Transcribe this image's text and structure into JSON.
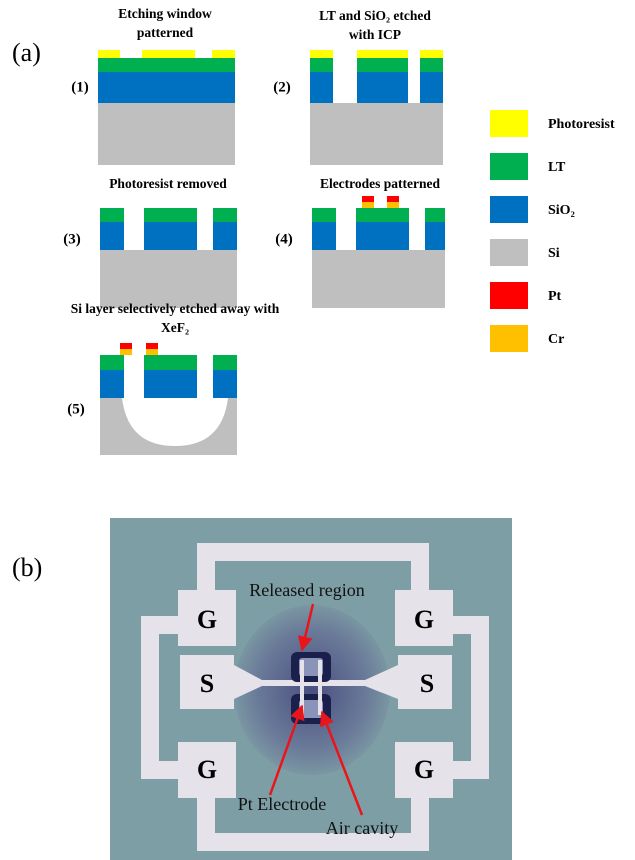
{
  "panel_a": {
    "label": "(a)",
    "steps": [
      {
        "number": "(1)",
        "title": [
          "Etching window",
          "patterned"
        ]
      },
      {
        "number": "(2)",
        "title": [
          "LT and SiO₂ etched",
          "with ICP"
        ]
      },
      {
        "number": "(3)",
        "title": [
          "Photoresist removed"
        ]
      },
      {
        "number": "(4)",
        "title": [
          "Electrodes patterned"
        ]
      },
      {
        "number": "(5)",
        "title": [
          "Si layer selectively etched away with",
          "XeF₂"
        ]
      }
    ],
    "legend": [
      "Photoresist",
      "LT",
      "SiO₂",
      "Si",
      "Pt",
      "Cr"
    ]
  },
  "panel_b": {
    "label": "(b)",
    "pads": [
      "G",
      "G",
      "S",
      "S",
      "G",
      "G"
    ],
    "annotations": [
      "Released region",
      "Pt Electrode",
      "Air cavity"
    ]
  }
}
